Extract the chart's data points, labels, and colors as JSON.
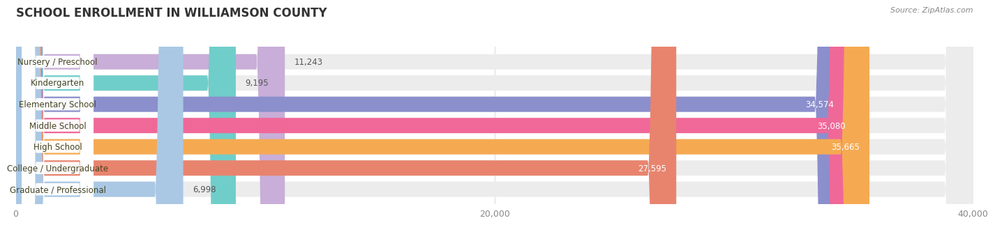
{
  "title": "SCHOOL ENROLLMENT IN WILLIAMSON COUNTY",
  "source": "Source: ZipAtlas.com",
  "categories": [
    "Nursery / Preschool",
    "Kindergarten",
    "Elementary School",
    "Middle School",
    "High School",
    "College / Undergraduate",
    "Graduate / Professional"
  ],
  "values": [
    11243,
    9195,
    34574,
    35080,
    35665,
    27595,
    6998
  ],
  "bar_colors": [
    "#c8aed8",
    "#70ceca",
    "#8b8fcc",
    "#f06898",
    "#f5aa52",
    "#e8846e",
    "#aac8e4"
  ],
  "background_color": "#ffffff",
  "container_color": "#ececec",
  "xlim": [
    0,
    40000
  ],
  "xticks": [
    0,
    20000,
    40000
  ],
  "xtick_labels": [
    "0",
    "20,000",
    "40,000"
  ],
  "title_fontsize": 12,
  "label_fontsize": 8.5,
  "value_fontsize": 8.5,
  "bar_height": 0.72,
  "value_inside_threshold": 0.55
}
